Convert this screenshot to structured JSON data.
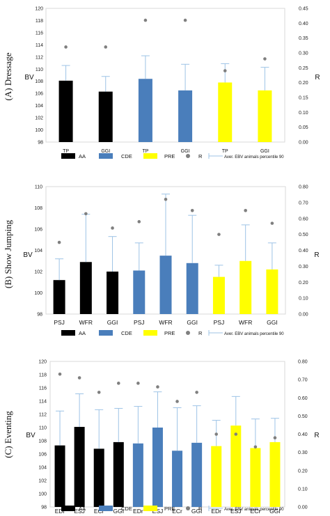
{
  "colors": {
    "AA": "#000000",
    "CDE": "#4a7ebb",
    "PRE": "#ffff00",
    "R": "#7f7f7f",
    "error": "#9dc3e6"
  },
  "legend": [
    {
      "key": "AA",
      "label": "AA"
    },
    {
      "key": "CDE",
      "label": "CDE"
    },
    {
      "key": "PRE",
      "label": "PRE"
    },
    {
      "key": "R",
      "label": "R"
    },
    {
      "key": "error",
      "label": "Aver. EBV animals percentile 90"
    }
  ],
  "chart_data": [
    {
      "type": "bar",
      "panel_title": "(A) Dressage",
      "ylabel": "BV",
      "y2label": "R",
      "ylim": [
        98,
        120
      ],
      "y2lim": [
        0,
        0.45
      ],
      "yticks": [
        "98",
        "100",
        "102",
        "104",
        "106",
        "108",
        "110",
        "112",
        "114",
        "116",
        "118",
        "120"
      ],
      "y2ticks": [
        "0.00",
        "0.05",
        "0.10",
        "0.15",
        "0.20",
        "0.25",
        "0.30",
        "0.35",
        "0.40",
        "0.45"
      ],
      "categories": [
        "TP",
        "GGI",
        "TP",
        "GGI",
        "TP",
        "GGI"
      ],
      "groups": [
        "AA",
        "AA",
        "CDE",
        "CDE",
        "PRE",
        "PRE"
      ],
      "values": [
        108.1,
        106.3,
        108.4,
        106.5,
        107.8,
        106.5
      ],
      "errors": [
        110.6,
        108.8,
        112.2,
        110.8,
        110.9,
        110.3
      ],
      "r": [
        0.32,
        0.32,
        0.41,
        0.41,
        0.24,
        0.28
      ]
    },
    {
      "type": "bar",
      "panel_title": "(B) Show Jumping",
      "ylabel": "BV",
      "y2label": "R",
      "ylim": [
        98,
        110
      ],
      "y2lim": [
        0,
        0.8
      ],
      "yticks": [
        "98",
        "100",
        "102",
        "104",
        "106",
        "108",
        "110"
      ],
      "y2ticks": [
        "0.00",
        "0.10",
        "0.20",
        "0.30",
        "0.40",
        "0.50",
        "0.60",
        "0.70",
        "0.80"
      ],
      "categories": [
        "PSJ",
        "WFR",
        "GGI",
        "PSJ",
        "WFR",
        "GGI",
        "PSJ",
        "WFR",
        "GGI"
      ],
      "groups": [
        "AA",
        "AA",
        "AA",
        "CDE",
        "CDE",
        "CDE",
        "PRE",
        "PRE",
        "PRE"
      ],
      "values": [
        101.2,
        102.9,
        102.0,
        102.1,
        103.5,
        102.8,
        101.5,
        103.0,
        102.2
      ],
      "errors": [
        103.2,
        107.4,
        105.3,
        104.7,
        109.3,
        107.3,
        102.6,
        106.4,
        104.7
      ],
      "r": [
        0.45,
        0.63,
        0.54,
        0.58,
        0.72,
        0.65,
        0.5,
        0.65,
        0.57
      ]
    },
    {
      "type": "bar",
      "panel_title": "(C) Eventing",
      "ylabel": "BV",
      "y2label": "R",
      "ylim": [
        98,
        120
      ],
      "y2lim": [
        0,
        0.8
      ],
      "yticks": [
        "98",
        "100",
        "102",
        "104",
        "106",
        "108",
        "110",
        "112",
        "114",
        "116",
        "118",
        "120"
      ],
      "y2ticks": [
        "0.00",
        "0.10",
        "0.20",
        "0.30",
        "0.40",
        "0.50",
        "0.60",
        "0.70",
        "0.80"
      ],
      "categories": [
        "EDr",
        "ESJ",
        "ECr",
        "GGI",
        "EDr",
        "ESJ",
        "ECr",
        "GGI",
        "EDr",
        "ESJ",
        "ECr",
        "GGI"
      ],
      "groups": [
        "AA",
        "AA",
        "AA",
        "AA",
        "CDE",
        "CDE",
        "CDE",
        "CDE",
        "PRE",
        "PRE",
        "PRE",
        "PRE"
      ],
      "values": [
        107.3,
        110.1,
        106.8,
        107.8,
        107.6,
        110.0,
        106.5,
        107.7,
        107.2,
        110.3,
        106.9,
        107.8
      ],
      "errors": [
        112.5,
        115.1,
        112.7,
        112.9,
        113.2,
        115.4,
        113.0,
        113.3,
        111.1,
        114.7,
        111.3,
        111.4
      ],
      "r": [
        0.73,
        0.71,
        0.63,
        0.68,
        0.68,
        0.66,
        0.58,
        0.63,
        0.4,
        0.4,
        0.33,
        0.38
      ]
    }
  ]
}
